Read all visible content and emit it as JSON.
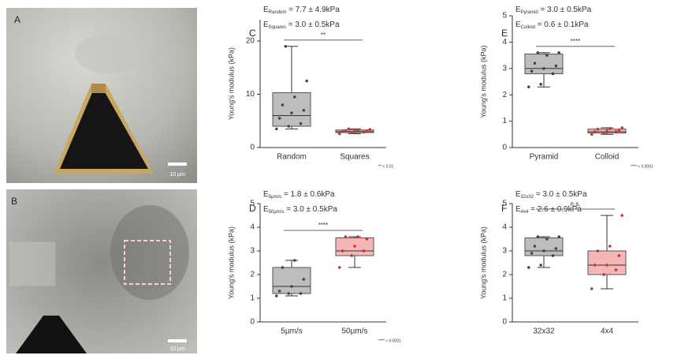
{
  "images": [
    {
      "label": "A",
      "scale": "10 µm"
    },
    {
      "label": "B",
      "scale": "10 µm"
    }
  ],
  "chart_data": [
    {
      "type": "box",
      "panel": "C",
      "annotations": [
        {
          "symbol": "E",
          "sub": "Random",
          "text": " = 7.7 ± 4.9kPa"
        },
        {
          "symbol": "E",
          "sub": "Squares",
          "text": " = 3.0 ± 0.5kPa"
        }
      ],
      "ylabel": "Young's modulus (kPa)",
      "categories": [
        "Random",
        "Squares"
      ],
      "ylim": [
        0,
        24
      ],
      "yticks": [
        0,
        10,
        20
      ],
      "series": [
        {
          "color": "#bdbdbd",
          "point_color": "#444444",
          "whislo": 3.5,
          "q1": 4,
          "med": 6,
          "q3": 10.3,
          "whishi": 19,
          "points": [
            3.5,
            4,
            4.5,
            5.5,
            6.5,
            7,
            8,
            9.5,
            12.5,
            19
          ]
        },
        {
          "color": "#f4b6b6",
          "point_color": "#c0392b",
          "whislo": 2.6,
          "q1": 2.8,
          "med": 3.0,
          "q3": 3.3,
          "whishi": 3.5,
          "points": [
            2.6,
            2.8,
            2.9,
            3.0,
            3.0,
            3.1,
            3.2,
            3.3,
            3.4,
            3.5
          ]
        }
      ],
      "significance": "**",
      "footnote": "** < 0.01"
    },
    {
      "type": "box",
      "panel": "E",
      "annotations": [
        {
          "symbol": "E",
          "sub": "Pyramid",
          "text": " = 3.0 ± 0.5kPa"
        },
        {
          "symbol": "E",
          "sub": "Colloid",
          "text": " = 0.6 ± 0.1kPa"
        }
      ],
      "ylabel": "Young's modulus (kPa)",
      "categories": [
        "Pyramid",
        "Colloid"
      ],
      "ylim": [
        0,
        5
      ],
      "yticks": [
        0,
        1,
        2,
        3,
        4,
        5
      ],
      "series": [
        {
          "color": "#bdbdbd",
          "point_color": "#444444",
          "whislo": 2.3,
          "q1": 2.8,
          "med": 3.0,
          "q3": 3.55,
          "whishi": 3.6,
          "points": [
            2.3,
            2.4,
            2.8,
            2.9,
            3.0,
            3.1,
            3.2,
            3.5,
            3.6,
            3.6
          ]
        },
        {
          "color": "#f4b6b6",
          "point_color": "#c0392b",
          "whislo": 0.5,
          "q1": 0.55,
          "med": 0.6,
          "q3": 0.7,
          "whishi": 0.75,
          "points": [
            0.5,
            0.55,
            0.6,
            0.6,
            0.62,
            0.65,
            0.7,
            0.72,
            0.75
          ]
        }
      ],
      "significance": "****",
      "footnote": "**** < 0.0001"
    },
    {
      "type": "box",
      "panel": "D",
      "annotations": [
        {
          "symbol": "E",
          "sub": "5µm/s",
          "text": " = 1.8 ± 0.6kPa"
        },
        {
          "symbol": "E",
          "sub": "50µm/s",
          "text": " = 3.0 ± 0.5kPa"
        }
      ],
      "ylabel": "Young's modulus (kPa)",
      "categories": [
        "5µm/s",
        "50µm/s"
      ],
      "ylim": [
        0,
        5
      ],
      "yticks": [
        0,
        1,
        2,
        3,
        4,
        5
      ],
      "series": [
        {
          "color": "#bdbdbd",
          "point_color": "#444444",
          "whislo": 1.1,
          "q1": 1.2,
          "med": 1.5,
          "q3": 2.3,
          "whishi": 2.6,
          "points": [
            1.1,
            1.2,
            1.2,
            1.3,
            1.5,
            1.8,
            2.3,
            2.6
          ]
        },
        {
          "color": "#f4b6b6",
          "point_color": "#c0392b",
          "whislo": 2.3,
          "q1": 2.8,
          "med": 3.0,
          "q3": 3.55,
          "whishi": 3.6,
          "points": [
            2.3,
            2.8,
            3.0,
            3.0,
            3.2,
            3.5,
            3.6,
            3.6
          ]
        }
      ],
      "significance": "****",
      "footnote": "**** < 0.0001"
    },
    {
      "type": "box",
      "panel": "F",
      "annotations": [
        {
          "symbol": "E",
          "sub": "32x32",
          "text": " = 3.0 ± 0.5kPa"
        },
        {
          "symbol": "E",
          "sub": "4x4",
          "text": " = 2.6 ± 0.9kPa"
        }
      ],
      "ylabel": "Young's modulus (kPa)",
      "categories": [
        "32x32",
        "4x4"
      ],
      "ylim": [
        0,
        5
      ],
      "yticks": [
        0,
        1,
        2,
        3,
        4,
        5
      ],
      "series": [
        {
          "color": "#bdbdbd",
          "point_color": "#444444",
          "whislo": 2.3,
          "q1": 2.8,
          "med": 3.0,
          "q3": 3.55,
          "whishi": 3.6,
          "points": [
            2.3,
            2.4,
            2.8,
            2.9,
            3.0,
            3.1,
            3.2,
            3.5,
            3.6,
            3.6
          ]
        },
        {
          "color": "#f4b6b6",
          "point_color": "#c0392b",
          "whislo": 1.4,
          "q1": 2.0,
          "med": 2.4,
          "q3": 3.0,
          "whishi": 4.5,
          "points": [
            1.4,
            2.0,
            2.2,
            2.4,
            2.4,
            2.8,
            3.0,
            3.2,
            4.5
          ]
        }
      ],
      "significance": "n.s."
    }
  ]
}
